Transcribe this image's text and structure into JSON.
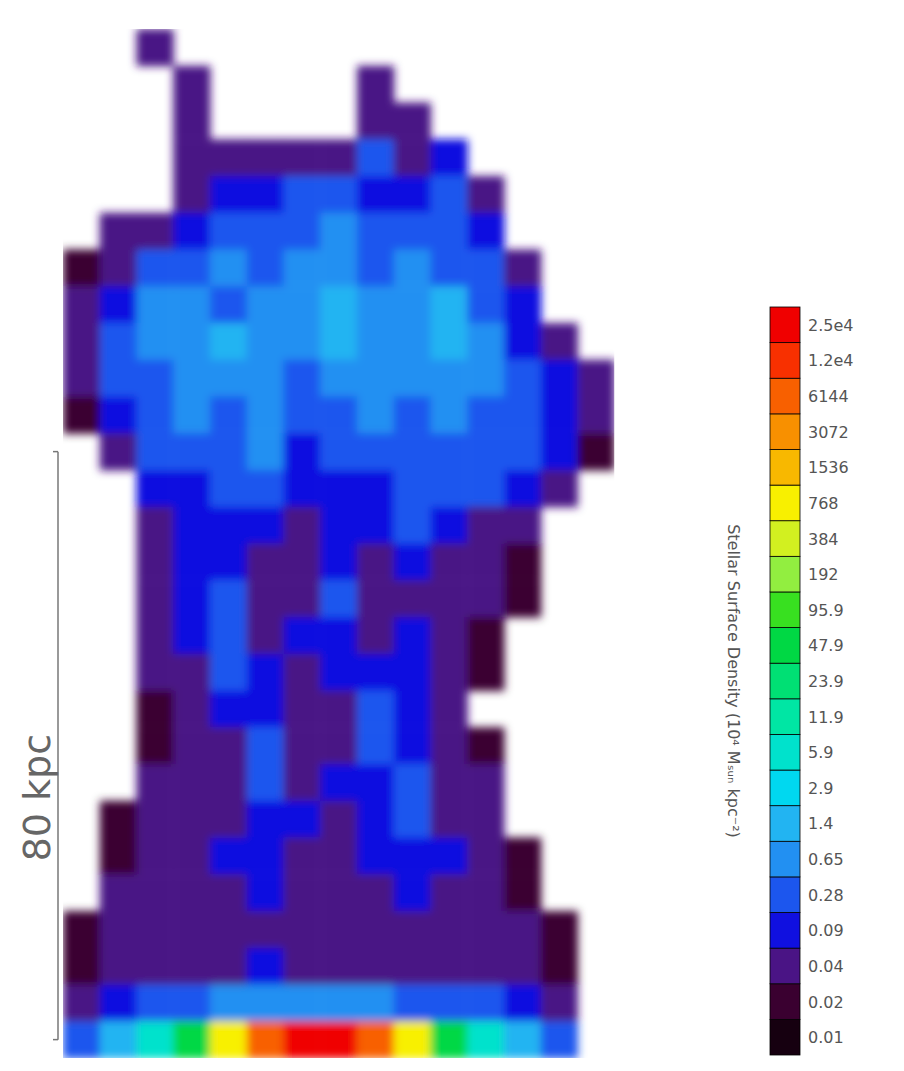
{
  "chart_data": {
    "type": "heatmap",
    "tick_labels": false,
    "xlim": [
      -35,
      40
    ],
    "ylim": [
      -2.5,
      137.5
    ],
    "x": [
      -32.5,
      -27.5,
      -22.5,
      -17.5,
      -12.5,
      -7.5,
      -2.5,
      2.5,
      7.5,
      12.5,
      17.5,
      22.5,
      27.5,
      32.5,
      37.5
    ],
    "y": [
      135,
      130,
      125,
      120,
      115,
      110,
      105,
      100,
      95,
      90,
      85,
      80,
      75,
      70,
      65,
      60,
      55,
      50,
      45,
      40,
      35,
      30,
      25,
      20,
      15,
      10,
      5,
      0
    ],
    "values": [
      [
        0,
        0,
        0.04,
        0,
        0,
        0,
        0,
        0,
        0,
        0,
        0,
        0,
        0,
        0,
        0
      ],
      [
        0,
        0,
        0,
        0.04,
        0,
        0,
        0,
        0,
        0.04,
        0,
        0,
        0,
        0,
        0,
        0
      ],
      [
        0,
        0,
        0,
        0.04,
        0,
        0,
        0,
        0,
        0.04,
        0.04,
        0,
        0,
        0,
        0,
        0
      ],
      [
        0,
        0,
        0,
        0.04,
        0.04,
        0.04,
        0.04,
        0.04,
        0.28,
        0.04,
        0.09,
        0,
        0,
        0,
        0
      ],
      [
        0,
        0,
        0,
        0.04,
        0.09,
        0.09,
        0.28,
        0.28,
        0.09,
        0.09,
        0.28,
        0.04,
        0,
        0,
        0
      ],
      [
        0,
        0.04,
        0.04,
        0.09,
        0.28,
        0.28,
        0.28,
        0.65,
        0.28,
        0.28,
        0.28,
        0.09,
        0,
        0,
        0
      ],
      [
        0.02,
        0.04,
        0.28,
        0.28,
        0.65,
        0.28,
        0.65,
        0.65,
        0.28,
        0.65,
        0.28,
        0.28,
        0.04,
        0,
        0
      ],
      [
        0.04,
        0.09,
        0.65,
        0.65,
        0.28,
        0.65,
        0.65,
        1.4,
        0.65,
        0.65,
        1.4,
        0.28,
        0.09,
        0,
        0
      ],
      [
        0.04,
        0.28,
        0.65,
        0.65,
        1.4,
        0.65,
        0.65,
        1.4,
        0.65,
        0.65,
        1.4,
        0.65,
        0.09,
        0.04,
        0
      ],
      [
        0.04,
        0.28,
        0.28,
        0.65,
        0.65,
        0.65,
        0.28,
        0.65,
        0.65,
        0.65,
        0.65,
        0.65,
        0.28,
        0.09,
        0.04
      ],
      [
        0.02,
        0.09,
        0.28,
        0.65,
        0.28,
        0.65,
        0.28,
        0.28,
        0.65,
        0.28,
        0.65,
        0.28,
        0.28,
        0.09,
        0.04
      ],
      [
        0,
        0.04,
        0.28,
        0.28,
        0.28,
        0.65,
        0.09,
        0.28,
        0.28,
        0.28,
        0.28,
        0.28,
        0.28,
        0.09,
        0.02
      ],
      [
        0,
        0,
        0.09,
        0.09,
        0.28,
        0.28,
        0.09,
        0.09,
        0.09,
        0.28,
        0.28,
        0.28,
        0.09,
        0.04,
        0
      ],
      [
        0,
        0,
        0.04,
        0.09,
        0.09,
        0.09,
        0.04,
        0.09,
        0.09,
        0.28,
        0.09,
        0.04,
        0.04,
        0,
        0
      ],
      [
        0,
        0,
        0.04,
        0.09,
        0.09,
        0.04,
        0.04,
        0.09,
        0.04,
        0.09,
        0.04,
        0.04,
        0.02,
        0,
        0
      ],
      [
        0,
        0,
        0.04,
        0.09,
        0.28,
        0.04,
        0.04,
        0.28,
        0.04,
        0.04,
        0.04,
        0.04,
        0.02,
        0,
        0
      ],
      [
        0,
        0,
        0.04,
        0.09,
        0.28,
        0.04,
        0.09,
        0.09,
        0.04,
        0.09,
        0.04,
        0.02,
        0,
        0,
        0
      ],
      [
        0,
        0,
        0.04,
        0.04,
        0.28,
        0.09,
        0.04,
        0.09,
        0.09,
        0.09,
        0.04,
        0.02,
        0,
        0,
        0
      ],
      [
        0,
        0,
        0.02,
        0.04,
        0.09,
        0.09,
        0.04,
        0.04,
        0.28,
        0.09,
        0.04,
        0,
        0,
        0,
        0
      ],
      [
        0,
        0,
        0.02,
        0.04,
        0.04,
        0.28,
        0.04,
        0.04,
        0.28,
        0.09,
        0.04,
        0.02,
        0,
        0,
        0
      ],
      [
        0,
        0,
        0.04,
        0.04,
        0.04,
        0.28,
        0.04,
        0.09,
        0.09,
        0.28,
        0.04,
        0.04,
        0,
        0,
        0
      ],
      [
        0,
        0.02,
        0.04,
        0.04,
        0.04,
        0.09,
        0.09,
        0.04,
        0.09,
        0.28,
        0.04,
        0.04,
        0,
        0,
        0
      ],
      [
        0,
        0.02,
        0.04,
        0.04,
        0.09,
        0.09,
        0.04,
        0.04,
        0.09,
        0.09,
        0.09,
        0.04,
        0.02,
        0,
        0
      ],
      [
        0,
        0.04,
        0.04,
        0.04,
        0.04,
        0.09,
        0.04,
        0.04,
        0.04,
        0.09,
        0.04,
        0.04,
        0.02,
        0,
        0
      ],
      [
        0.02,
        0.04,
        0.04,
        0.04,
        0.04,
        0.04,
        0.04,
        0.04,
        0.04,
        0.04,
        0.04,
        0.04,
        0.04,
        0.02,
        0
      ],
      [
        0.02,
        0.04,
        0.04,
        0.04,
        0.04,
        0.09,
        0.04,
        0.04,
        0.04,
        0.04,
        0.04,
        0.04,
        0.04,
        0.02,
        0
      ],
      [
        0.04,
        0.09,
        0.28,
        0.28,
        0.65,
        0.65,
        0.65,
        0.65,
        0.65,
        0.28,
        0.28,
        0.28,
        0.09,
        0.04,
        0
      ],
      [
        0.28,
        1.4,
        5.9,
        47.9,
        768,
        6144,
        25000,
        25000,
        6144,
        768,
        47.9,
        5.9,
        1.4,
        0.28,
        0
      ]
    ],
    "colorbar_label": "Stellar Surface Density (10⁴ Mₛᵤₙ kpc⁻²)",
    "colorbar_ticks": [
      0.01,
      0.02,
      0.04,
      0.09,
      0.28,
      0.65,
      1.4,
      2.9,
      5.9,
      11.9,
      23.9,
      47.9,
      95.9,
      192,
      384,
      768,
      1536,
      3072,
      6144,
      {
        "value": 12000,
        "label": "1.2e4"
      },
      {
        "value": 25000,
        "label": "2.5e4"
      }
    ],
    "colors": [
      "#160010",
      "#3a0030",
      "#4a1485",
      "#1010e0",
      "#1c56ee",
      "#2290f2",
      "#22b4f2",
      "#00d8f0",
      "#00e2cc",
      "#00e6a4",
      "#00e074",
      "#00d844",
      "#38e020",
      "#92ee40",
      "#d2f020",
      "#f8f000",
      "#f8b800",
      "#f89000",
      "#f86000",
      "#f83000",
      "#f00000"
    ],
    "scale_bar": {
      "value": 80,
      "label": "80 kpc"
    }
  }
}
